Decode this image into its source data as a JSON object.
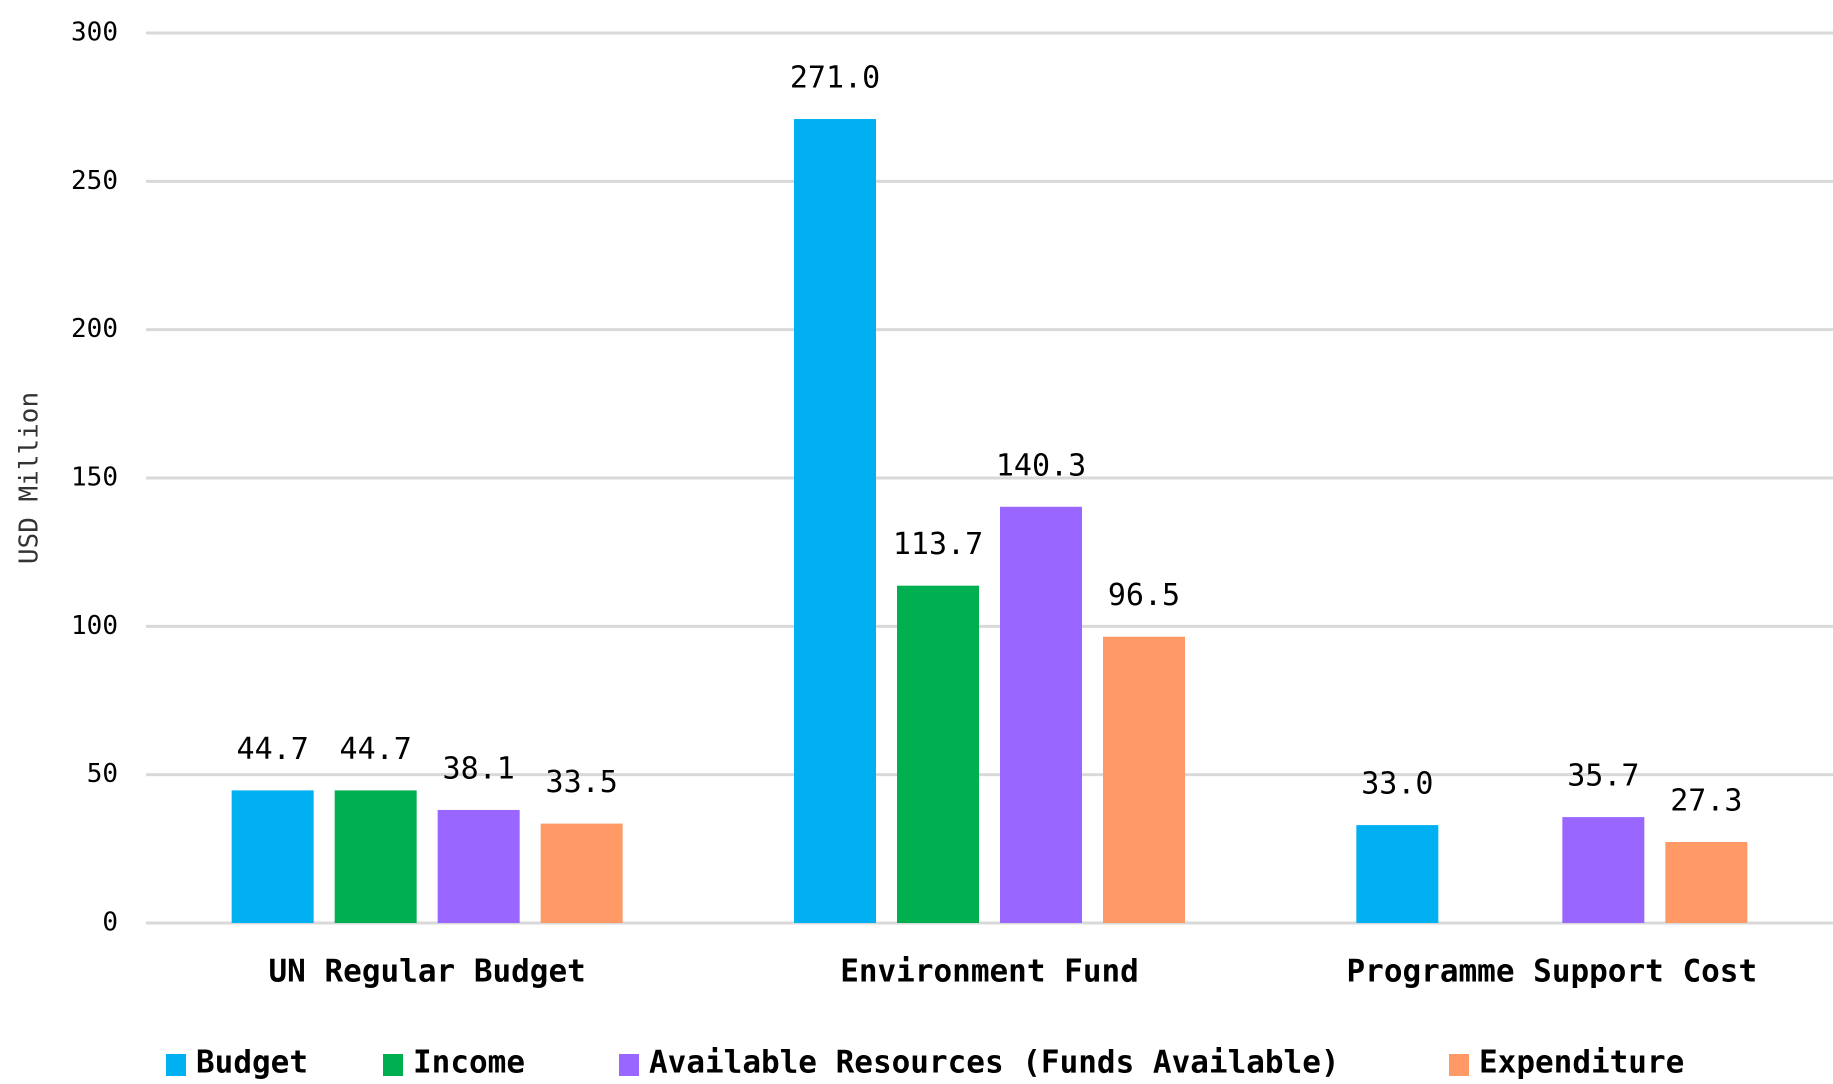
{
  "chart_data": {
    "type": "bar",
    "y_label": "USD Million",
    "categories": [
      "UN Regular Budget",
      "Environment Fund",
      "Programme Support Cost"
    ],
    "series": [
      {
        "name": "Budget",
        "color": "#00b0f0",
        "values": [
          44.7,
          271.0,
          33.0
        ],
        "value_labels": [
          "44.7",
          "271.0",
          "33.0"
        ]
      },
      {
        "name": "Income",
        "color": "#00b050",
        "values": [
          44.7,
          113.7,
          null
        ],
        "value_labels": [
          "44.7",
          "113.7",
          null
        ]
      },
      {
        "name": "Available Resources (Funds Available)",
        "color": "#9966ff",
        "values": [
          38.1,
          140.3,
          35.7
        ],
        "value_labels": [
          "38.1",
          "140.3",
          "35.7"
        ]
      },
      {
        "name": "Expenditure",
        "color": "#ff9966",
        "values": [
          33.5,
          96.5,
          27.3
        ],
        "value_labels": [
          "33.5",
          "96.5",
          "27.3"
        ]
      }
    ],
    "ylim": [
      0,
      300
    ],
    "yticks": [
      0,
      50,
      100,
      150,
      200,
      250,
      300
    ],
    "grid": true,
    "legend": "bottom"
  }
}
